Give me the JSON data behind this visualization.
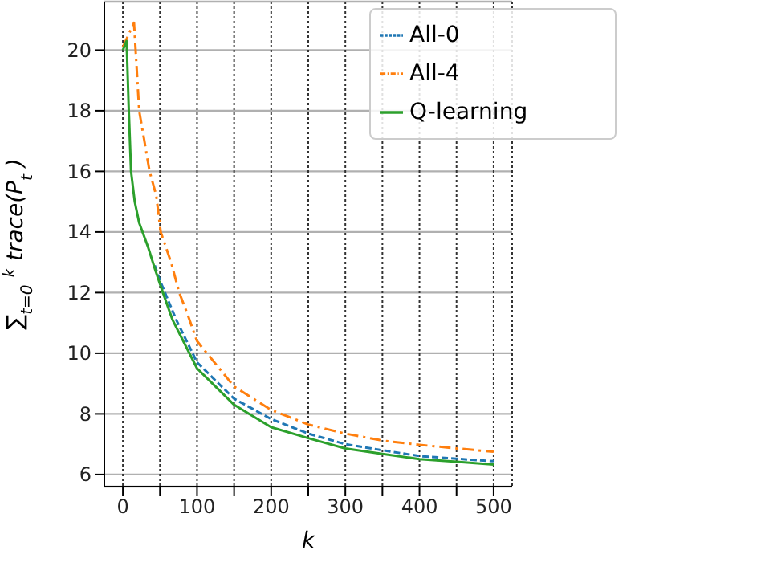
{
  "chart_data": {
    "type": "line",
    "xlabel": "k",
    "ylabel": "∑$_{t=0}$$^{k}$ trace(P$_{t}$)",
    "xlim": [
      -25,
      525
    ],
    "xticks": [
      0,
      {
        "value": 50,
        "label": null
      },
      100,
      {
        "value": 150,
        "label": null
      },
      200,
      {
        "value": 250,
        "label": null
      },
      300,
      {
        "value": 350,
        "label": null
      },
      400,
      {
        "value": 450,
        "label": null
      },
      500
    ],
    "ylim": [
      5.6,
      21.6
    ],
    "yticks": [
      6,
      8,
      10,
      12,
      14,
      16,
      18,
      20
    ],
    "grid": true,
    "legend": "top right",
    "marker": "none",
    "series": [
      {
        "name": "All-0",
        "color": "#1f77b4",
        "line_style": "dashed",
        "x": [
          43,
          50,
          72,
          100,
          150,
          200,
          250,
          300,
          350,
          400,
          450,
          500
        ],
        "values": [
          12.9,
          12.4,
          11.1,
          9.7,
          8.5,
          7.83,
          7.35,
          7.0,
          6.8,
          6.61,
          6.52,
          6.44
        ]
      },
      {
        "name": "All-4",
        "color": "#ff7f0e",
        "line_style": "dashdot",
        "x": [
          0,
          15,
          22,
          36,
          45,
          51,
          65,
          76,
          87,
          100,
          150,
          200,
          250,
          300,
          350,
          400,
          450,
          500
        ],
        "values": [
          20.1,
          20.9,
          18,
          16,
          15.2,
          14,
          13,
          12,
          11.3,
          10.4,
          8.9,
          8.13,
          7.65,
          7.35,
          7.12,
          6.98,
          6.86,
          6.75
        ]
      },
      {
        "name": "Q-learning",
        "color": "#2ca02c",
        "line_style": "solid",
        "x": [
          0,
          5,
          8,
          11,
          16,
          22,
          34,
          43,
          54,
          67,
          100,
          150,
          200,
          250,
          300,
          350,
          400,
          450,
          500
        ],
        "values": [
          20.0,
          20.3,
          18,
          16,
          15,
          14.3,
          13.5,
          12.8,
          12,
          11.1,
          9.5,
          8.3,
          7.56,
          7.2,
          6.86,
          6.68,
          6.51,
          6.42,
          6.33
        ]
      }
    ]
  }
}
